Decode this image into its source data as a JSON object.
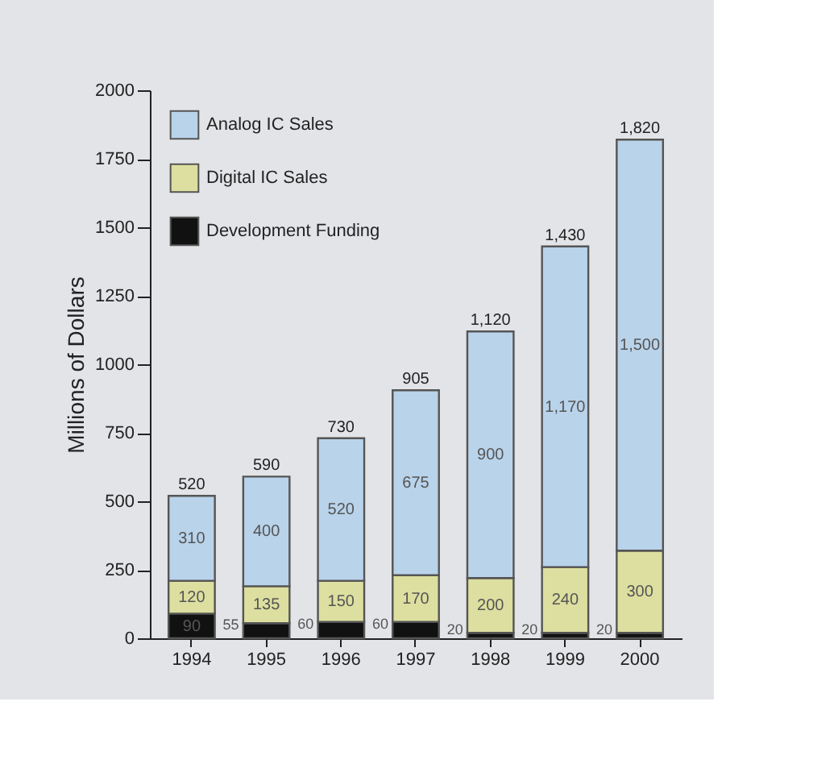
{
  "chart_data": {
    "type": "bar",
    "stacked": true,
    "ylabel": "Millions of Dollars",
    "categories": [
      "1994",
      "1995",
      "1996",
      "1997",
      "1998",
      "1999",
      "2000"
    ],
    "series": [
      {
        "name": "Development Funding",
        "color": "#111111",
        "values": [
          90,
          55,
          60,
          60,
          20,
          20,
          20
        ],
        "value_labels": [
          "90",
          "55",
          "60",
          "60",
          "20",
          "20",
          "20"
        ]
      },
      {
        "name": "Digital IC Sales",
        "color": "#dcdf9f",
        "values": [
          120,
          135,
          150,
          170,
          200,
          240,
          300
        ],
        "value_labels": [
          "120",
          "135",
          "150",
          "170",
          "200",
          "240",
          "300"
        ]
      },
      {
        "name": "Analog IC Sales",
        "color": "#b9d3ea",
        "values": [
          310,
          400,
          520,
          675,
          900,
          1170,
          1500
        ],
        "value_labels": [
          "310",
          "400",
          "520",
          "675",
          "900",
          "1,170",
          "1,500"
        ]
      }
    ],
    "totals": [
      "520",
      "590",
      "730",
      "905",
      "1,120",
      "1,430",
      "1,820"
    ],
    "ylim": [
      0,
      2000
    ],
    "yticks": [
      0,
      250,
      500,
      750,
      1000,
      1250,
      1500,
      1750,
      2000
    ],
    "grid": false,
    "legend": "top left"
  }
}
